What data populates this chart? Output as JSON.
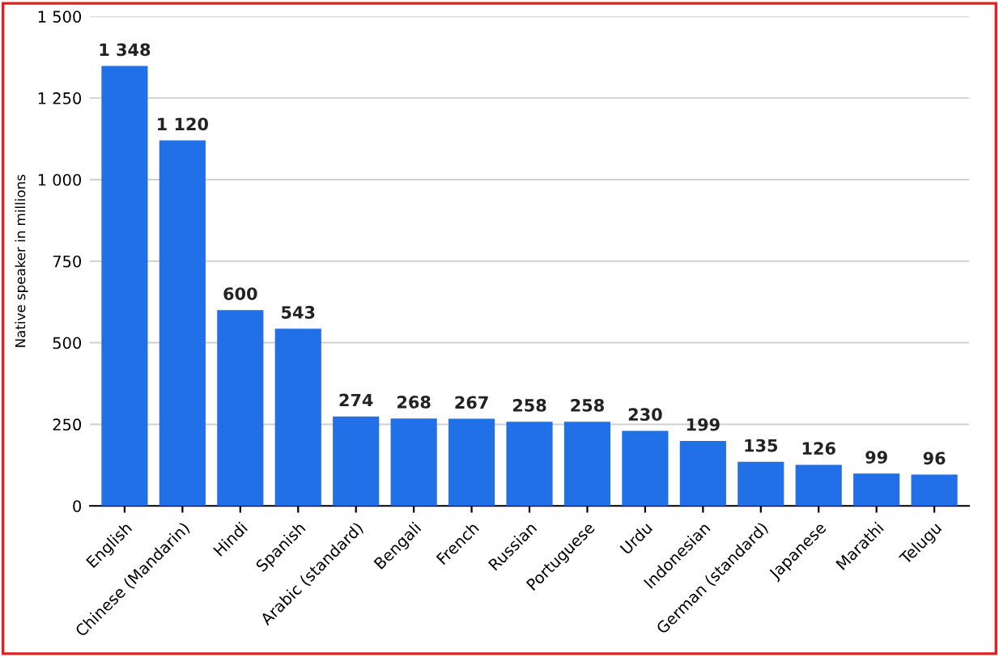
{
  "chart_data": {
    "type": "bar",
    "ylabel": "Native speaker in millions",
    "categories": [
      "English",
      "Chinese (Mandarin)",
      "Hindi",
      "Spanish",
      "Arabic (standard)",
      "Bengali",
      "French",
      "Russian",
      "Portuguese",
      "Urdu",
      "Indonesian",
      "German (standard)",
      "Japanese",
      "Marathi",
      "Telugu"
    ],
    "values": [
      1348,
      1120,
      600,
      543,
      274,
      268,
      267,
      258,
      258,
      230,
      199,
      135,
      126,
      99,
      96
    ],
    "value_labels": [
      "1 348",
      "1 120",
      "600",
      "543",
      "274",
      "268",
      "267",
      "258",
      "258",
      "230",
      "199",
      "135",
      "126",
      "99",
      "96"
    ],
    "color": "#2170e8",
    "ylim": [
      0,
      1500
    ],
    "yticks": [
      0,
      250,
      500,
      750,
      {
        "value": 1000,
        "label": "1 000"
      },
      {
        "value": 1250,
        "label": "1 250"
      },
      {
        "value": 1500,
        "label": "1 500"
      }
    ],
    "grid": "y"
  }
}
